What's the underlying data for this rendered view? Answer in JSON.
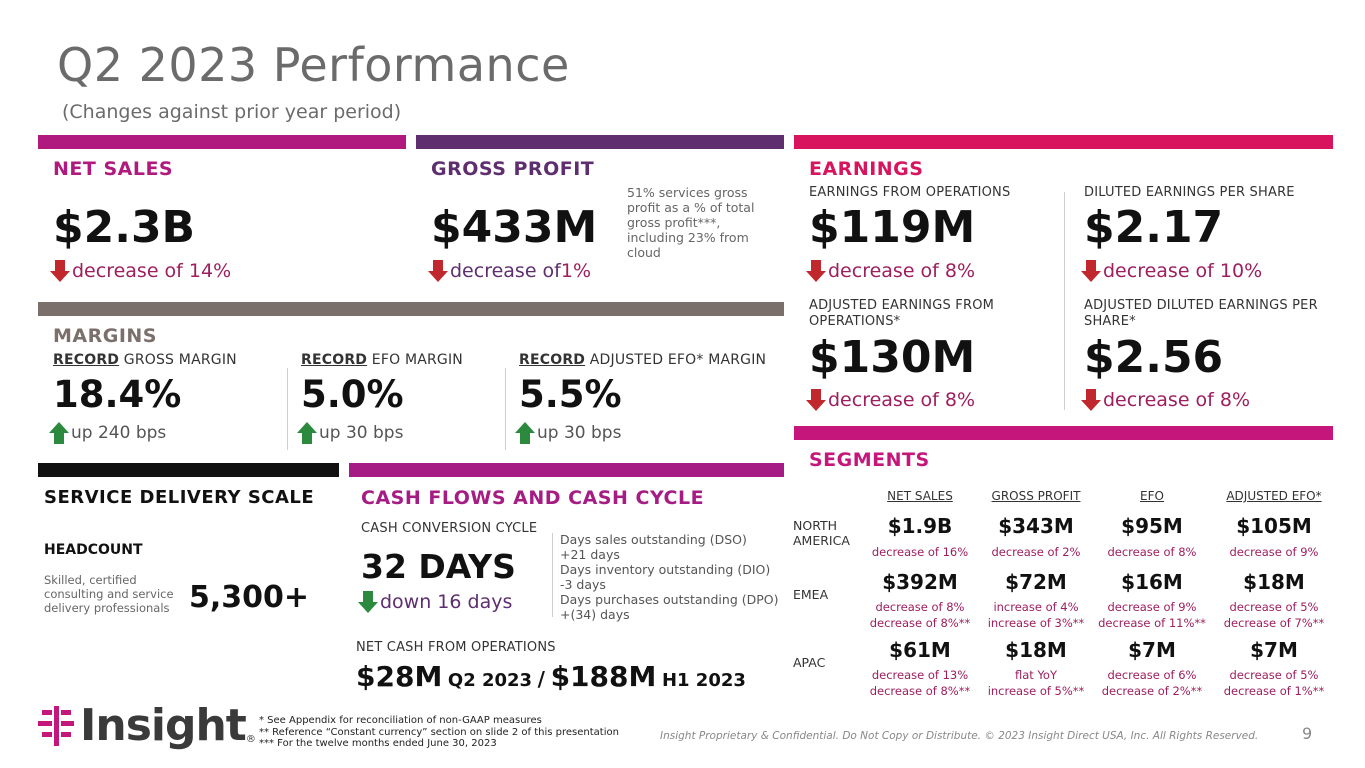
{
  "title": "Q2 2023 Performance",
  "subtitle": "(Changes against prior year period)",
  "colors": {
    "net_sales": "#b0197e",
    "gross_profit": "#5e2e6f",
    "earnings": "#d8145e",
    "margins": "#7a6f6a",
    "service": "#111111",
    "cash": "#a51c84",
    "segments": "#c5167c",
    "down": "#c0282d",
    "up": "#2b8a3e"
  },
  "net_sales": {
    "heading": "NET SALES",
    "value": "$2.3B",
    "change": "decrease of 14%"
  },
  "gross_profit": {
    "heading": "GROSS PROFIT",
    "value": "$433M",
    "change_text": "decrease of ",
    "change_pct": "1%",
    "note": "51% services gross profit as a % of total gross profit***, including 23% from cloud"
  },
  "earnings": {
    "heading": "EARNINGS",
    "efo_label": "EARNINGS FROM OPERATIONS",
    "efo_value": "$119M",
    "efo_change": "decrease of 8%",
    "eps_label": "DILUTED EARNINGS PER SHARE",
    "eps_value": "$2.17",
    "eps_change": "decrease of 10%",
    "adj_efo_label": "ADJUSTED EARNINGS FROM OPERATIONS*",
    "adj_efo_value": "$130M",
    "adj_efo_change": "decrease of 8%",
    "adj_eps_label": "ADJUSTED DILUTED EARNINGS PER SHARE*",
    "adj_eps_value": "$2.56",
    "adj_eps_change": "decrease of 8%"
  },
  "margins": {
    "heading": "MARGINS",
    "record": "RECORD",
    "items": [
      {
        "label": " GROSS MARGIN",
        "value": "18.4%",
        "change": "up 240 bps"
      },
      {
        "label": " EFO MARGIN",
        "value": "5.0%",
        "change": "up 30 bps"
      },
      {
        "label": " ADJUSTED EFO* MARGIN",
        "value": "5.5%",
        "change": "up 30 bps"
      }
    ]
  },
  "service": {
    "heading": "SERVICE DELIVERY SCALE",
    "sub": "HEADCOUNT",
    "note": "Skilled, certified consulting and service delivery professionals",
    "value": "5,300+"
  },
  "cash": {
    "heading": "CASH FLOWS AND CASH CYCLE",
    "ccc_label": "CASH CONVERSION CYCLE",
    "ccc_value": "32 DAYS",
    "ccc_change": "down 16 days",
    "details": [
      "Days sales outstanding (DSO)",
      "+21 days",
      "Days inventory outstanding (DIO)",
      "-3 days",
      "Days purchases outstanding (DPO)",
      "+(34) days"
    ],
    "ncfo_label": "NET CASH FROM OPERATIONS",
    "q2_value": "$28M",
    "q2_label": "Q2 2023",
    "sep": "/",
    "h1_value": "$188M",
    "h1_label": "H1 2023"
  },
  "segments": {
    "heading": "SEGMENTS",
    "columns": [
      "NET SALES",
      "GROSS PROFIT",
      "EFO",
      "ADJUSTED EFO*"
    ],
    "rows": [
      {
        "region": "NORTH AMERICA",
        "values": [
          "$1.9B",
          "$343M",
          "$95M",
          "$105M"
        ],
        "changes": [
          [
            "decrease of 16%"
          ],
          [
            "decrease of 2%"
          ],
          [
            "decrease of 8%"
          ],
          [
            "decrease of 9%"
          ]
        ]
      },
      {
        "region": "EMEA",
        "values": [
          "$392M",
          "$72M",
          "$16M",
          "$18M"
        ],
        "changes": [
          [
            "decrease of 8%",
            "decrease of 8%**"
          ],
          [
            "increase of 4%",
            "increase of 3%**"
          ],
          [
            "decrease of 9%",
            "decrease of 11%**"
          ],
          [
            "decrease of 5%",
            "decrease of 7%**"
          ]
        ]
      },
      {
        "region": "APAC",
        "values": [
          "$61M",
          "$18M",
          "$7M",
          "$7M"
        ],
        "changes": [
          [
            "decrease of 13%",
            "decrease of 8%**"
          ],
          [
            "flat YoY",
            "increase of 5%**"
          ],
          [
            "decrease of 6%",
            "decrease of 2%**"
          ],
          [
            "decrease of 5%",
            "decrease of 1%**"
          ]
        ]
      }
    ]
  },
  "footer": {
    "logo": "Insight",
    "notes": [
      "* See Appendix for reconciliation of non-GAAP measures",
      "** Reference “Constant currency” section on slide 2 of this presentation",
      "*** For the twelve months ended June 30, 2023"
    ],
    "confidential": "Insight Proprietary & Confidential. Do Not Copy or Distribute. © 2023 Insight Direct USA, Inc. All Rights Reserved.",
    "page": "9"
  }
}
